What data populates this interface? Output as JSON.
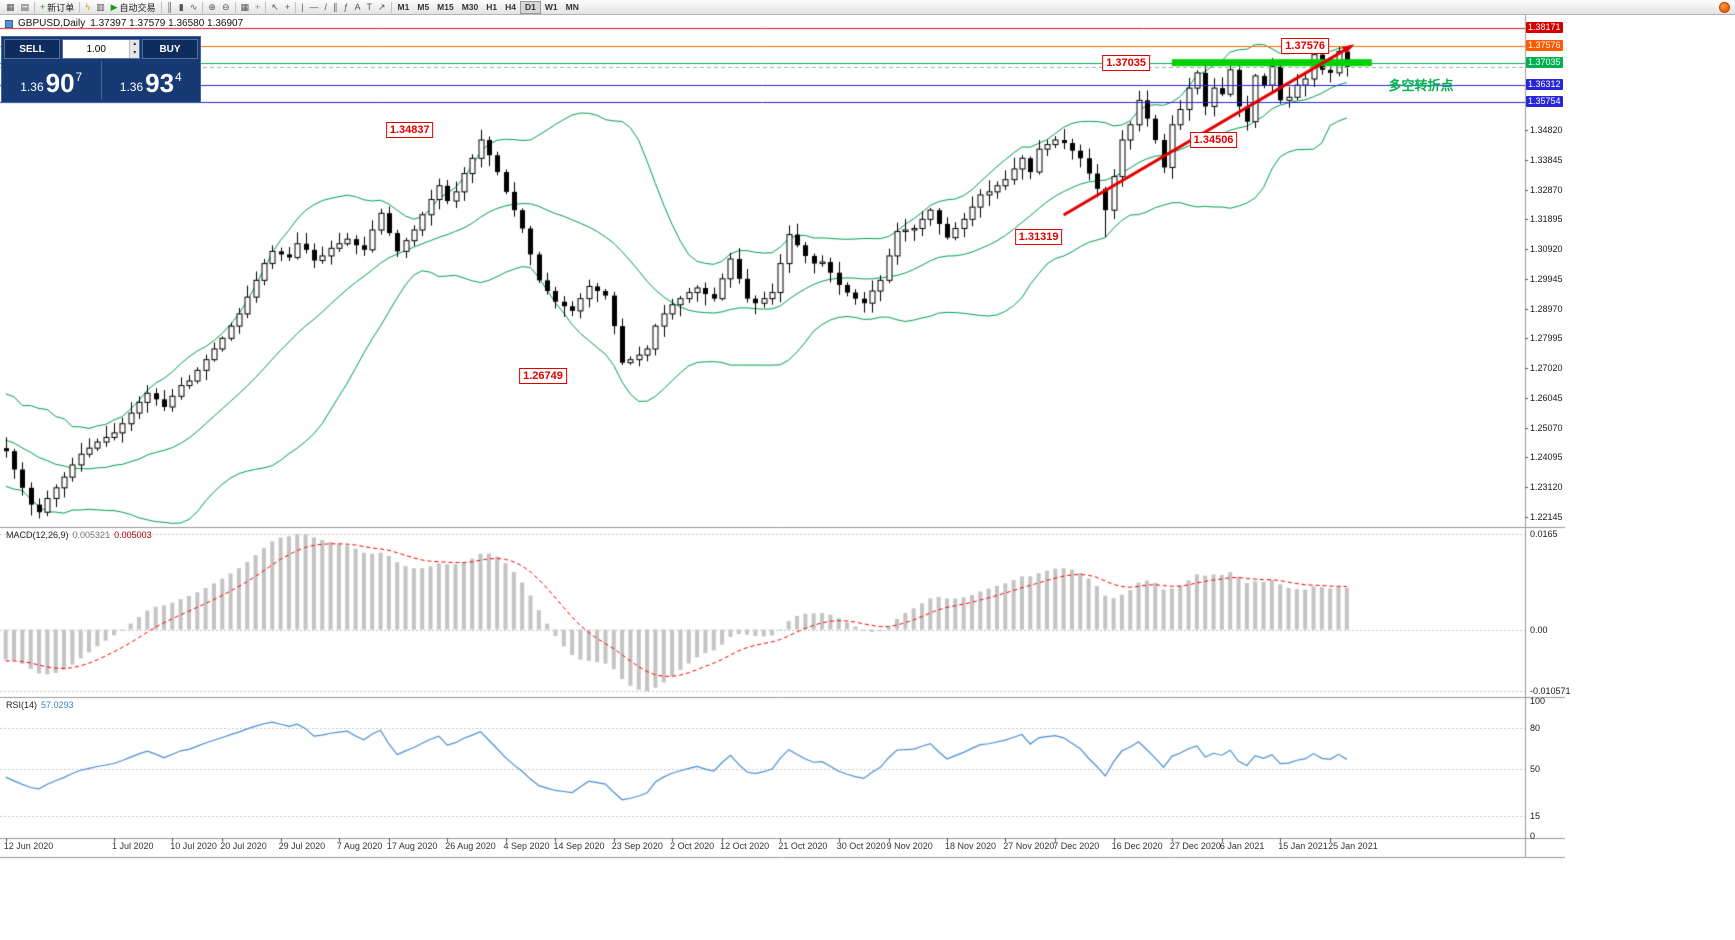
{
  "toolbar": {
    "buttons": [
      {
        "name": "new-chart-button",
        "icon": "chart-window-icon",
        "glyph": "▦"
      },
      {
        "name": "profiles-button",
        "icon": "layout-icon",
        "glyph": "▤"
      },
      {
        "sep": true
      },
      {
        "name": "new-order-button",
        "icon": "new-order-plus-icon",
        "glyph": "+",
        "color": "#1fa11f",
        "label": "新订单"
      },
      {
        "sep": true
      },
      {
        "name": "expert-advisors-button",
        "icon": "lightning-icon",
        "glyph": "ϟ",
        "color": "#d89b00"
      },
      {
        "name": "chart-shift-button",
        "icon": "chart-shift-icon",
        "glyph": "▥"
      },
      {
        "name": "autotrading-button",
        "icon": "autotrade-play-icon",
        "glyph": "▶",
        "color": "#18a018",
        "label": "自动交易"
      },
      {
        "sep": true
      },
      {
        "name": "bar-chart-button",
        "icon": "bar-chart-icon",
        "glyph": "║"
      },
      {
        "name": "candlestick-chart-button",
        "icon": "candlestick-icon",
        "glyph": "▮"
      },
      {
        "name": "line-chart-button",
        "icon": "line-chart-icon",
        "glyph": "∿"
      },
      {
        "sep": true
      },
      {
        "name": "zoom-in-button",
        "icon": "zoom-in-icon",
        "glyph": "⊕"
      },
      {
        "name": "zoom-out-button",
        "icon": "zoom-out-icon",
        "glyph": "⊖"
      },
      {
        "sep": true
      },
      {
        "name": "tile-windows-button",
        "icon": "tile-grid-icon",
        "glyph": "▦"
      },
      {
        "name": "indicators-button",
        "icon": "indicators-plus-icon",
        "glyph": "+",
        "color": "#888888"
      },
      {
        "sep": true
      },
      {
        "name": "cursor-button",
        "icon": "cursor-icon",
        "glyph": "↖"
      },
      {
        "name": "crosshair-button",
        "icon": "crosshair-icon",
        "glyph": "+"
      },
      {
        "sep": true
      },
      {
        "name": "vertical-line-button",
        "icon": "vertical-line-icon",
        "glyph": "|"
      },
      {
        "name": "horizontal-line-button",
        "icon": "horizontal-line-icon",
        "glyph": "—"
      },
      {
        "name": "trendline-button",
        "icon": "trendline-icon",
        "glyph": "/"
      },
      {
        "name": "channel-button",
        "icon": "channel-icon",
        "glyph": "∥"
      },
      {
        "name": "fibonacci-button",
        "icon": "fibonacci-icon",
        "glyph": "ƒ"
      },
      {
        "name": "text-button",
        "icon": "text-a-icon",
        "glyph": "A"
      },
      {
        "name": "label-button",
        "icon": "label-t-icon",
        "glyph": "T"
      },
      {
        "name": "arrows-button",
        "icon": "arrow-icon",
        "glyph": "↗"
      },
      {
        "sep": true
      }
    ],
    "timeframes": [
      "M1",
      "M5",
      "M15",
      "M30",
      "H1",
      "H4",
      "D1",
      "W1",
      "MN"
    ],
    "active_timeframe": "D1"
  },
  "chart_header": {
    "symbol_period": "GBPUSD,Daily",
    "ohlc": "1.37397 1.37579 1.36580 1.36907"
  },
  "trade_panel": {
    "sell_label": "SELL",
    "buy_label": "BUY",
    "volume": "1.00",
    "bid_big_figure": "1.36",
    "bid_pips": "90",
    "bid_point": "7",
    "ask_big_figure": "1.36",
    "ask_pips": "93",
    "ask_point": "4"
  },
  "indicators": {
    "macd_label": "MACD(12,26,9)",
    "macd_value1": "0.005321",
    "macd_value2": "0.005003",
    "rsi_label": "RSI(14)",
    "rsi_value": "57.0293"
  },
  "axes": {
    "price_scale_labels": [
      "1.34820",
      "1.33845",
      "1.32870",
      "1.31895",
      "1.30920",
      "1.29945",
      "1.28970",
      "1.27995",
      "1.27020",
      "1.26045",
      "1.25070",
      "1.24095",
      "1.23120",
      "1.22145"
    ],
    "price_special_labels": [
      {
        "text": "1.38171",
        "bg": "#d40000"
      },
      {
        "text": "1.37576",
        "bg": "#ff5a00"
      },
      {
        "text": "1.37035",
        "bg": "#00b050"
      },
      {
        "text": "1.36312",
        "bg": "#2626d8"
      },
      {
        "text": "1.35754",
        "bg": "#2626d8"
      }
    ],
    "macd_labels": {
      "max": "0.0165",
      "zero": "0.00",
      "min": "-0.010571"
    },
    "rsi_axis_labels": [
      {
        "text": "100",
        "v": 100
      },
      {
        "text": "80",
        "v": 80
      },
      {
        "text": "50",
        "v": 50
      },
      {
        "text": "15",
        "v": 15
      },
      {
        "text": "0",
        "v": 0
      }
    ],
    "rsi_levels": [
      80,
      50,
      15
    ],
    "date_labels": [
      {
        "text": "12 Jun 2020",
        "i": 0
      },
      {
        "text": "1 Jul 2020",
        "i": 13
      },
      {
        "text": "10 Jul 2020",
        "i": 20
      },
      {
        "text": "20 Jul 2020",
        "i": 26
      },
      {
        "text": "29 Jul 2020",
        "i": 33
      },
      {
        "text": "7 Aug 2020",
        "i": 40
      },
      {
        "text": "17 Aug 2020",
        "i": 46
      },
      {
        "text": "26 Aug 2020",
        "i": 53
      },
      {
        "text": "4 Sep 2020",
        "i": 60
      },
      {
        "text": "14 Sep 2020",
        "i": 66
      },
      {
        "text": "23 Sep 2020",
        "i": 73
      },
      {
        "text": "2 Oct 2020",
        "i": 80
      },
      {
        "text": "12 Oct 2020",
        "i": 86
      },
      {
        "text": "21 Oct 2020",
        "i": 93
      },
      {
        "text": "30 Oct 2020",
        "i": 100
      },
      {
        "text": "9 Nov 2020",
        "i": 106
      },
      {
        "text": "18 Nov 2020",
        "i": 113
      },
      {
        "text": "27 Nov 2020",
        "i": 120
      },
      {
        "text": "7 Dec 2020",
        "i": 126
      },
      {
        "text": "16 Dec 2020",
        "i": 133
      },
      {
        "text": "27 Dec 2020",
        "i": 140
      },
      {
        "text": "6 Jan 2021",
        "i": 146
      },
      {
        "text": "15 Jan 2021",
        "i": 153
      },
      {
        "text": "25 Jan 2021",
        "i": 159
      }
    ]
  },
  "chart_data": {
    "type": "candlestick",
    "symbol": "GBPUSD",
    "period": "Daily",
    "title": "GBPUSD,Daily 1.37397 1.37579 1.36580 1.36907",
    "pre_closes": [
      1.263,
      1.256,
      1.264,
      1.254,
      1.257,
      1.248,
      1.255,
      1.245,
      1.254,
      1.243,
      1.247,
      1.239,
      1.245,
      1.235,
      1.246,
      1.238,
      1.242,
      1.235,
      1.243,
      1.244
    ],
    "closes": [
      1.243,
      1.237,
      1.231,
      1.2255,
      1.223,
      1.2275,
      1.231,
      1.2345,
      1.2385,
      1.242,
      1.244,
      1.246,
      1.2475,
      1.249,
      1.252,
      1.2555,
      1.259,
      1.262,
      1.26,
      1.2575,
      1.261,
      1.2645,
      1.266,
      1.2695,
      1.273,
      1.2765,
      1.28,
      1.284,
      1.288,
      1.2935,
      1.299,
      1.3045,
      1.3085,
      1.3075,
      1.3065,
      1.311,
      1.309,
      1.3055,
      1.307,
      1.3095,
      1.311,
      1.3125,
      1.3105,
      1.309,
      1.3155,
      1.321,
      1.3145,
      1.3085,
      1.312,
      1.3155,
      1.3205,
      1.3255,
      1.33,
      1.325,
      1.328,
      1.334,
      1.339,
      1.345,
      1.34,
      1.3345,
      1.328,
      1.322,
      1.316,
      1.3075,
      1.299,
      1.2955,
      1.292,
      1.2905,
      1.289,
      1.293,
      1.297,
      1.2955,
      1.294,
      1.284,
      1.272,
      1.273,
      1.2745,
      1.2765,
      1.284,
      1.288,
      1.291,
      1.293,
      1.295,
      1.2965,
      1.2945,
      1.293,
      1.2995,
      1.306,
      1.2995,
      1.293,
      1.2915,
      1.293,
      1.295,
      1.3045,
      1.314,
      1.3105,
      1.307,
      1.3045,
      1.305,
      1.3015,
      1.2975,
      1.295,
      1.293,
      1.2915,
      1.2955,
      1.299,
      1.307,
      1.315,
      1.3155,
      1.316,
      1.319,
      1.322,
      1.3175,
      1.313,
      1.316,
      1.319,
      1.323,
      1.327,
      1.328,
      1.33,
      1.332,
      1.3355,
      1.339,
      1.3345,
      1.342,
      1.3435,
      1.345,
      1.344,
      1.3415,
      1.339,
      1.334,
      1.329,
      1.322,
      1.333,
      1.345,
      1.35,
      1.358,
      1.352,
      1.345,
      1.336,
      1.35,
      1.355,
      1.362,
      1.367,
      1.356,
      1.362,
      1.36,
      1.368,
      1.356,
      1.351,
      1.366,
      1.363,
      1.369,
      1.358,
      1.359,
      1.363,
      1.365,
      1.373,
      1.368,
      1.367,
      1.374,
      1.369
    ],
    "wick_overrides": {
      "57": {
        "high": 1.34837
      },
      "132": {
        "low": 1.31319
      },
      "160": {
        "high": 1.37576
      },
      "161": {
        "high": 1.37579,
        "low": 1.3658
      }
    },
    "bollinger": {
      "period": 20,
      "deviation": 2
    },
    "macd": {
      "fast": 12,
      "slow": 26,
      "signal": 9
    },
    "rsi": {
      "period": 14
    },
    "hlines": [
      {
        "value": 1.38171,
        "color": "#c22222",
        "style": "solid"
      },
      {
        "value": 1.37576,
        "color": "#ff6a00",
        "style": "solid"
      },
      {
        "value": 1.37035,
        "color": "#00b050",
        "style": "solid"
      },
      {
        "value": 1.36312,
        "color": "#2626d8",
        "style": "solid"
      },
      {
        "value": 1.35754,
        "color": "#2626d8",
        "style": "solid"
      },
      {
        "value": 1.36907,
        "color": "#aaaaaa",
        "style": "dash"
      }
    ],
    "zone": {
      "value": 1.37035,
      "from": 140,
      "to": 164,
      "color": "#00d200",
      "thickness": 7
    },
    "trendline": {
      "from": {
        "i": 127,
        "v": 1.3204
      },
      "to": {
        "i": 161.5,
        "v": 1.3757
      },
      "color": "#e00000",
      "width": 3,
      "arrow": true
    },
    "annotations": [
      {
        "text": "1.37576",
        "i": 156,
        "v": 1.37576,
        "kind": "price-label"
      },
      {
        "text": "1.37035",
        "i": 134.5,
        "v": 1.37035,
        "kind": "price-label"
      },
      {
        "text": "1.34837",
        "i": 48.5,
        "v": 1.34837,
        "kind": "price-label"
      },
      {
        "text": "1.34506",
        "i": 145,
        "v": 1.34506,
        "kind": "price-label"
      },
      {
        "text": "1.31319",
        "i": 124,
        "v": 1.31319,
        "kind": "price-label"
      },
      {
        "text": "1.26749",
        "i": 64.5,
        "v": 1.26749,
        "kind": "price-label"
      },
      {
        "text": "多空转折点",
        "i": 166,
        "v": 1.3632,
        "kind": "note",
        "color": "#00b050"
      }
    ],
    "colors": {
      "bull": "#ffffff",
      "bear": "#000000",
      "outline": "#000000",
      "band": "#00a050",
      "macd_hist": "#c4c4c4",
      "macd_signal": "#ff0000",
      "rsi": "#4a8fd4"
    }
  }
}
